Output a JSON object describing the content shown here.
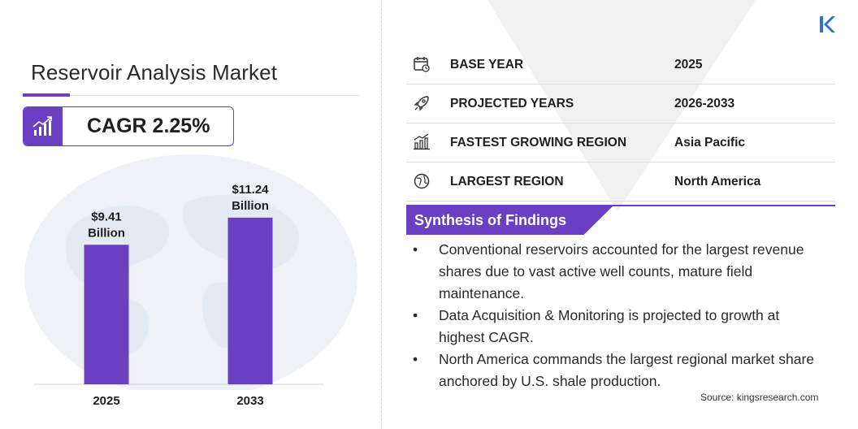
{
  "report": {
    "title": "Reservoir Analysis Market",
    "cagr_label": "CAGR 2.25%"
  },
  "chart_data": {
    "type": "bar",
    "categories": [
      "2025",
      "2033"
    ],
    "values": [
      9.41,
      11.24
    ],
    "data_labels": [
      "$9.41\nBillion",
      "$11.24\nBillion"
    ],
    "label_lines": [
      [
        "$9.41",
        "Billion"
      ],
      [
        "$11.24",
        "Billion"
      ]
    ],
    "unit": "USD Billion",
    "bar_color": "#6a3fc2",
    "ylim": [
      0,
      12
    ],
    "grid": false,
    "title": "",
    "xlabel": "",
    "ylabel": ""
  },
  "info_table": [
    {
      "icon": "calendar-icon",
      "label": "BASE YEAR",
      "value": "2025"
    },
    {
      "icon": "rocket-icon",
      "label": "PROJECTED YEARS",
      "value": "2026-2033"
    },
    {
      "icon": "growth-region-icon",
      "label": "FASTEST GROWING REGION",
      "value": "Asia Pacific"
    },
    {
      "icon": "globe-icon",
      "label": "LARGEST REGION",
      "value": "North America"
    }
  ],
  "synthesis": {
    "title": "Synthesis of Findings",
    "bullet": "•",
    "items": [
      "Conventional reservoirs accounted for the largest revenue shares due to vast active well counts, mature field maintenance.",
      "Data Acquisition & Monitoring is projected to growth at highest CAGR.",
      "North America commands the largest regional market share anchored by U.S. shale production."
    ]
  },
  "source": "Source:  kingsresearch.com",
  "colors": {
    "accent": "#6a3fc2",
    "logo": "#2f6fd6"
  }
}
